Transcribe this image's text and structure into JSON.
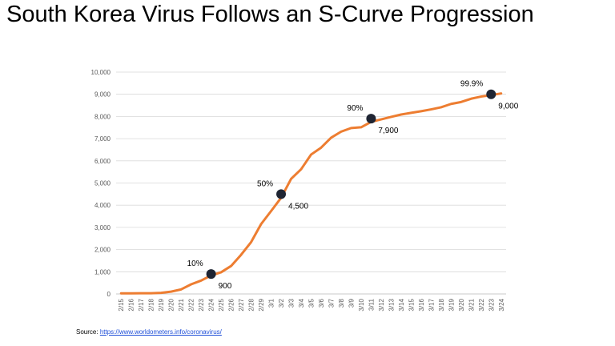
{
  "slide": {
    "title": "South Korea Virus Follows an S-Curve Progression"
  },
  "source": {
    "label": "Source:",
    "link_text": "https://www.worldometers.info/coronavirus/"
  },
  "chart_data": {
    "type": "line",
    "title": "",
    "xlabel": "",
    "ylabel": "",
    "ylim": [
      0,
      10000
    ],
    "yticks": [
      0,
      1000,
      2000,
      3000,
      4000,
      5000,
      6000,
      7000,
      8000,
      9000,
      10000
    ],
    "ytick_labels": [
      "0",
      "1,000",
      "2,000",
      "3,000",
      "4,000",
      "5,000",
      "6,000",
      "7,000",
      "8,000",
      "9,000",
      "10,000"
    ],
    "grid": "horizontal",
    "line_color": "#ed7d31",
    "marker_color": "#1f2533",
    "categories": [
      "2/15",
      "2/16",
      "2/17",
      "2/18",
      "2/19",
      "2/20",
      "2/21",
      "2/22",
      "2/23",
      "2/24",
      "2/25",
      "2/26",
      "2/27",
      "2/28",
      "2/29",
      "3/1",
      "3/2",
      "3/3",
      "3/4",
      "3/5",
      "3/6",
      "3/7",
      "3/8",
      "3/9",
      "3/10",
      "3/11",
      "3/12",
      "3/13",
      "3/14",
      "3/15",
      "3/16",
      "3/17",
      "3/18",
      "3/19",
      "3/20",
      "3/21",
      "3/22",
      "3/23",
      "3/24"
    ],
    "series": [
      {
        "values": [
          28,
          29,
          30,
          31,
          51,
          104,
          204,
          433,
          602,
          833,
          977,
          1261,
          1766,
          2337,
          3150,
          3736,
          4335,
          5186,
          5621,
          6284,
          6593,
          7041,
          7314,
          7478,
          7513,
          7755,
          7869,
          7979,
          8086,
          8162,
          8236,
          8320,
          8413,
          8565,
          8652,
          8799,
          8897,
          8961,
          9037
        ]
      }
    ],
    "annotations": [
      {
        "category": "2/24",
        "value": 900,
        "percent": "10%",
        "value_label": "900"
      },
      {
        "category": "3/2",
        "value": 4500,
        "percent": "50%",
        "value_label": "4,500"
      },
      {
        "category": "3/11",
        "value": 7900,
        "percent": "90%",
        "value_label": "7,900"
      },
      {
        "category": "3/23",
        "value": 9000,
        "percent": "99.9%",
        "value_label": "9,000"
      }
    ]
  }
}
